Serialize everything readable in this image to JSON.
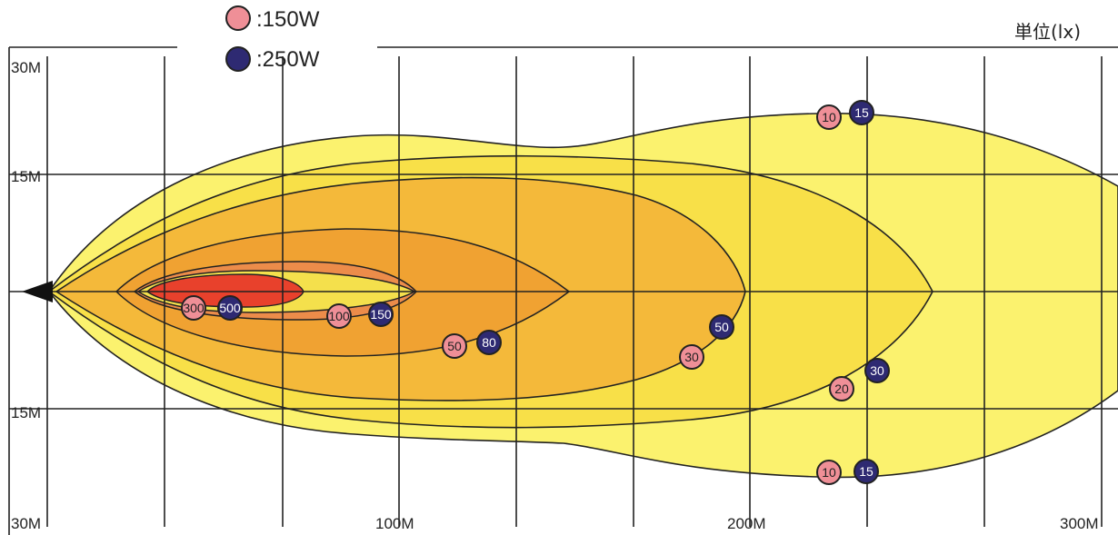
{
  "legend": {
    "items": [
      {
        "label": ":150W",
        "color": "#ef8f97"
      },
      {
        "label": ":250W",
        "color": "#2e2a72"
      }
    ]
  },
  "unit_label": "単位(lx)",
  "chart_data": {
    "type": "contour",
    "x_axis": {
      "ticks": [
        "100M",
        "200M",
        "300M"
      ]
    },
    "y_axis": {
      "ticks": [
        "30M",
        "15M",
        "15M",
        "30M"
      ]
    },
    "zone_colors": [
      "#fbf26e",
      "#f8e048",
      "#f4b93a",
      "#f0a232",
      "#ec8c4a",
      "#f4e04c",
      "#e8412c"
    ],
    "labels": {
      "lamp_150W": [
        "300",
        "100",
        "50",
        "30",
        "20",
        "10",
        "10"
      ],
      "lamp_250W": [
        "500",
        "150",
        "80",
        "50",
        "30",
        "15",
        "15"
      ]
    }
  }
}
